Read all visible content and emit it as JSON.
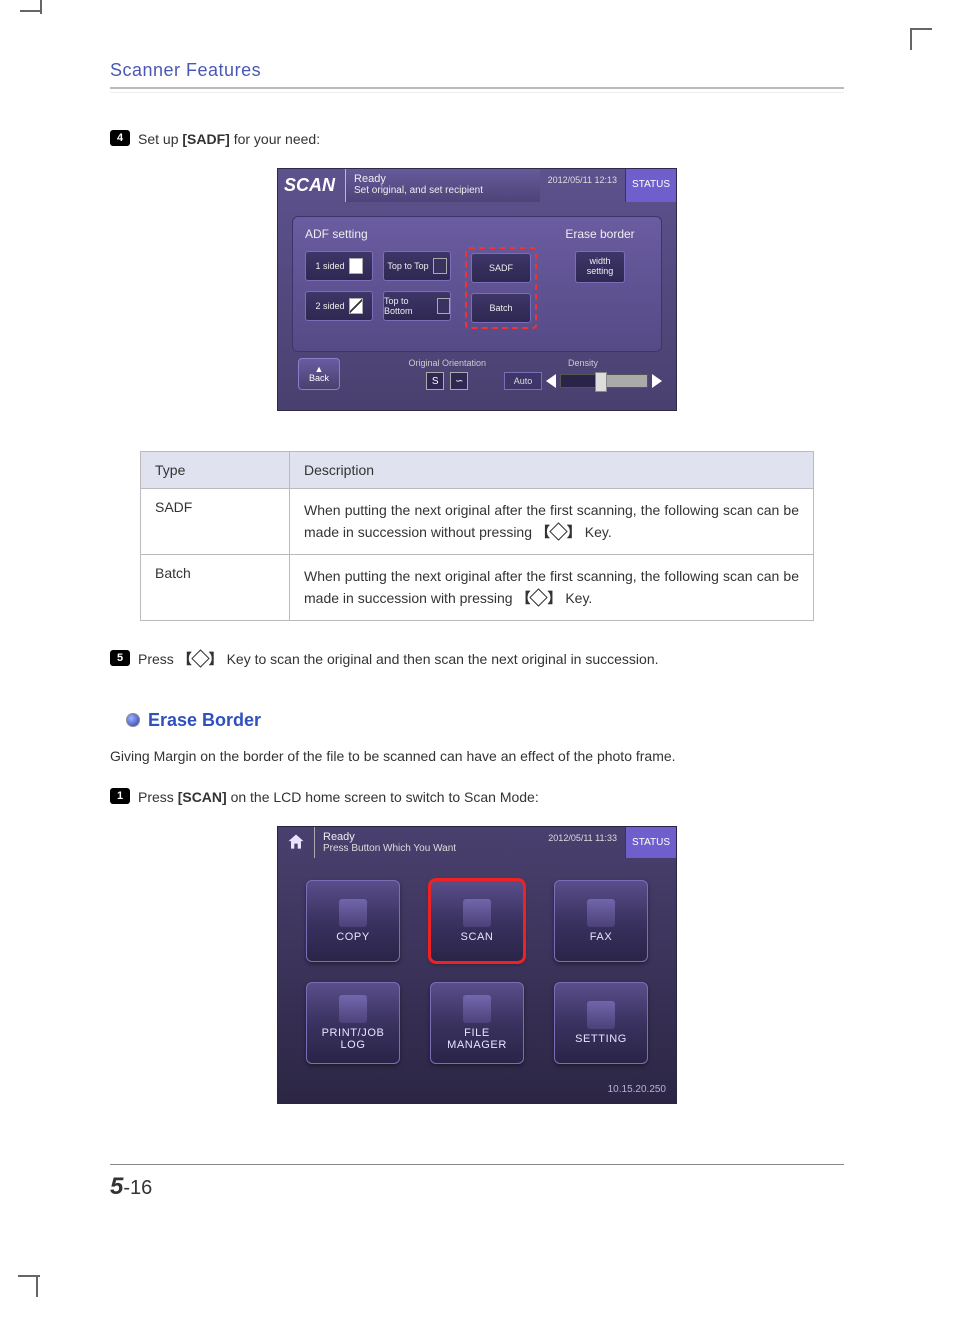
{
  "page": {
    "section_title": "Scanner Features",
    "chapter": "5",
    "pagenum": "-16"
  },
  "step4": {
    "num": "4",
    "pre": "Set up ",
    "bold": "[SADF]",
    "post": " for your need:"
  },
  "shot1": {
    "scan_label": "SCAN",
    "ready": "Ready",
    "ready_sub": "Set original, and set recipient",
    "datetime": "2012/05/11 12:13",
    "status": "STATUS",
    "adf_title": "ADF setting",
    "erase_title": "Erase border",
    "btn_1sided": "1 sided",
    "btn_2sided": "2 sided",
    "btn_top2top": "Top to Top",
    "btn_top2bottom": "Top to Bottom",
    "btn_sadf": "SADF",
    "btn_batch": "Batch",
    "btn_width": "width setting",
    "orient_label": "Original Orientation",
    "density_label": "Density",
    "auto_label": "Auto",
    "back_label": "Back",
    "highlight_color": "#e33333"
  },
  "table": {
    "columns": [
      "Type",
      "Description"
    ],
    "rows": [
      {
        "type": "SADF",
        "desc_a": "When putting the next original after the first scanning, the following scan can be made in succession without pressing ",
        "desc_b": " Key."
      },
      {
        "type": "Batch",
        "desc_a": "When putting the next original after the first scanning, the following scan can be made in succession with pressing ",
        "desc_b": " Key."
      }
    ],
    "header_bg": "#e0e3ef",
    "border_color": "#bbbbbb"
  },
  "step5": {
    "num": "5",
    "pre": "Press ",
    "post": " Key to scan the original and then scan the next original in succession."
  },
  "sub": {
    "heading": "Erase Border",
    "intro": "Giving Margin on the border of the file to be scanned can have an effect of the photo frame."
  },
  "step1": {
    "num": "1",
    "pre": "Press ",
    "bold": "[SCAN]",
    "post": " on the LCD home screen to switch to Scan Mode:"
  },
  "shot2": {
    "ready": "Ready",
    "ready_sub": "Press Button Which You Want",
    "datetime": "2012/05/11 11:33",
    "status": "STATUS",
    "btns": [
      "COPY",
      "SCAN",
      "FAX",
      "PRINT/JOB LOG",
      "FILE MANAGER",
      "SETTING"
    ],
    "ip": "10.15.20.250",
    "highlight_index": 1,
    "highlight_color": "#e22222"
  },
  "colors": {
    "title_color": "#4a58b5",
    "link_color": "#3050c0"
  }
}
